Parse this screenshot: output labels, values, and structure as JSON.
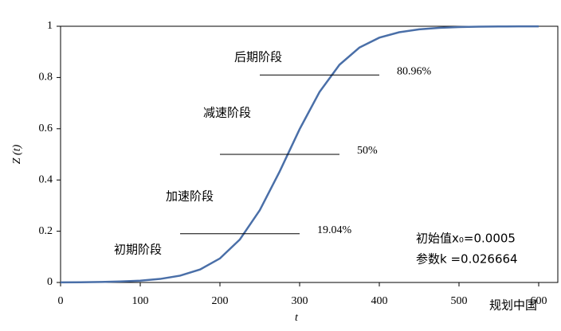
{
  "chart_data": {
    "type": "line",
    "x_label": "t",
    "y_label": "Z (t)",
    "x": [
      0,
      25,
      50,
      75,
      100,
      125,
      150,
      175,
      200,
      225,
      250,
      275,
      300,
      325,
      350,
      375,
      400,
      425,
      450,
      475,
      500,
      525,
      550,
      575,
      600
    ],
    "series": [
      {
        "color": "#4a6fa8",
        "values": [
          0.0005,
          0.00097,
          0.0019,
          0.0037,
          0.0071,
          0.0138,
          0.0266,
          0.0505,
          0.0938,
          0.1678,
          0.2821,
          0.4335,
          0.5984,
          0.7438,
          0.8497,
          0.9168,
          0.9555,
          0.9766,
          0.9879,
          0.9937,
          0.9968,
          0.9983,
          0.9991,
          0.9996,
          0.9998
        ]
      }
    ],
    "xlim": [
      0,
      624
    ],
    "xticks": [
      0,
      100,
      200,
      300,
      400,
      500,
      600
    ],
    "ylim": [
      0,
      1
    ],
    "yticks": [
      0,
      0.2,
      0.4,
      0.6,
      0.8,
      1
    ],
    "reference_lines": [
      {
        "y": 0.8096,
        "x": [
          250,
          400
        ],
        "label": "80.96%"
      },
      {
        "y": 0.5,
        "x": [
          200,
          350
        ],
        "label": "50%"
      },
      {
        "y": 0.1904,
        "x": [
          150,
          300
        ],
        "label": "19.04%"
      }
    ],
    "stage_labels": [
      "后期阶段",
      "减速阶段",
      "加速阶段",
      "初期阶段"
    ],
    "parameters": [
      "初始值x₀=0.0005",
      "参数k =0.026664"
    ],
    "watermark": "规划中国"
  }
}
